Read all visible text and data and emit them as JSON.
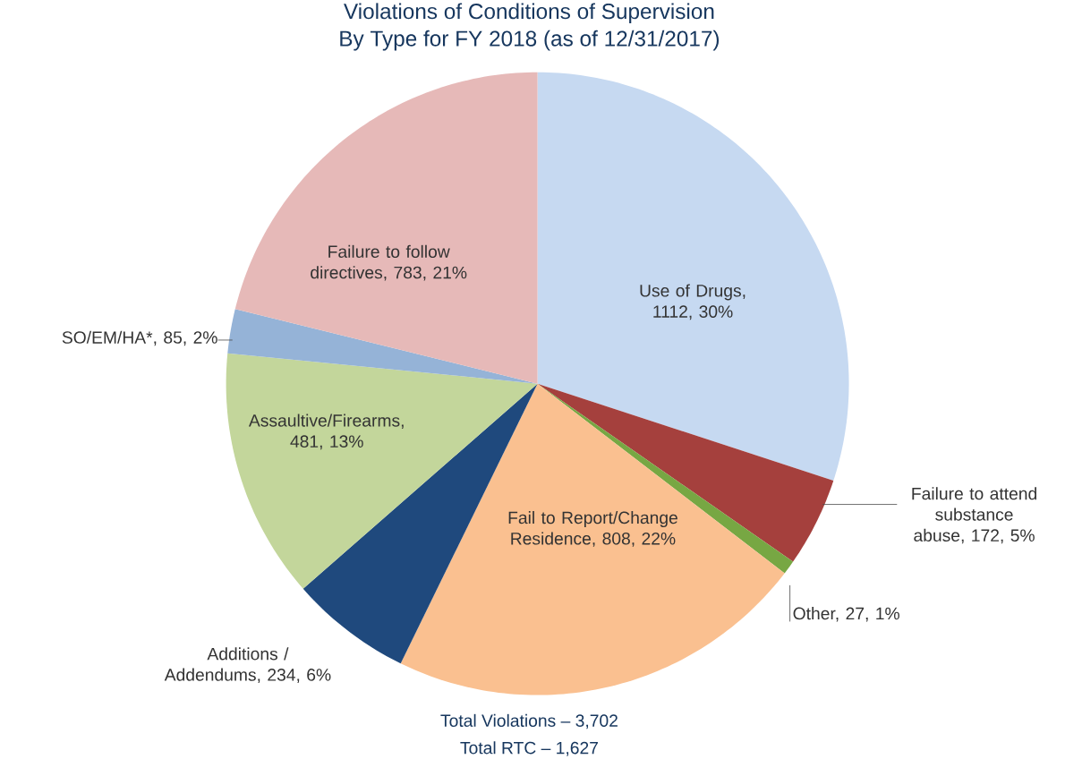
{
  "chart_data": {
    "type": "pie",
    "title": "Violations of Conditions of Supervision",
    "subtitle": "By Type for FY 2018 (as of 12/31/2017)",
    "categories": [
      "Use of Drugs, 1112, 30%",
      "Failure to attend substance abuse, 172, 5%",
      "Other, 27, 1%",
      "Fail to Report/Change Residence, 808, 22%",
      "Additions / Addendums, 234, 6%",
      "Assaultive/Firearms, 481, 13%",
      "SO/EM/HA*, 85, 2%",
      "Failure to follow directives, 783, 21%"
    ],
    "values": [
      1112,
      172,
      27,
      808,
      234,
      481,
      85,
      783
    ],
    "colors": [
      "#c6d9f1",
      "#a5403d",
      "#77a743",
      "#fac090",
      "#1f497d",
      "#c3d69b",
      "#95b3d7",
      "#e6b9b8"
    ],
    "annotations": [
      "Total Violations – 3,702",
      "Total RTC – 1,627"
    ]
  }
}
